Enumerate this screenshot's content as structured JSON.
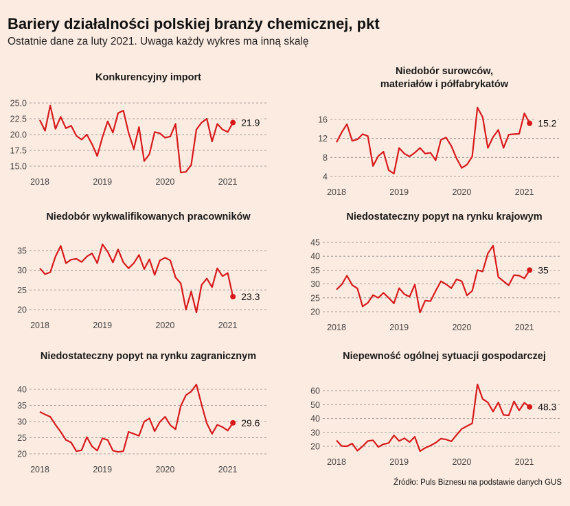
{
  "header": {
    "title": "Bariery działalności polskiej branży chemicznej, pkt",
    "subtitle": "Ostatnie dane za luty 2021. Uwaga każdy wykres ma inną skalę"
  },
  "source": "Źródło: Puls Biznesu na podstawie danych GUS",
  "colors": {
    "line": "#d7191c",
    "background": "#fbebe0",
    "grid": "#888888"
  },
  "chart_data": [
    {
      "type": "line",
      "title": "Konkurencyjny import",
      "x_start": "2018-01",
      "x_ticks": [
        "2018",
        "2019",
        "2020",
        "2021"
      ],
      "y_ticks": [
        "15.0",
        "17.5",
        "20.0",
        "22.5",
        "25.0"
      ],
      "ylim": [
        15,
        25
      ],
      "last_label": "21.9",
      "values": [
        22.3,
        20.6,
        24.6,
        20.9,
        22.8,
        21.0,
        21.4,
        19.8,
        19.2,
        20.0,
        18.5,
        16.6,
        19.6,
        22.1,
        20.3,
        23.4,
        23.8,
        20.3,
        17.7,
        21.2,
        15.8,
        16.9,
        20.4,
        20.2,
        19.5,
        19.7,
        21.7,
        14.0,
        14.1,
        15.2,
        20.8,
        21.9,
        22.5,
        18.9,
        21.7,
        20.8,
        20.4,
        21.9
      ]
    },
    {
      "type": "line",
      "title": "Niedobór surowców, materiałów i półfabrykatów",
      "x_start": "2018-01",
      "x_ticks": [
        "2018",
        "2019",
        "2020",
        "2021"
      ],
      "y_ticks": [
        "4",
        "8",
        "12",
        "16"
      ],
      "ylim": [
        4,
        16
      ],
      "last_label": "15.2",
      "values": [
        11.2,
        13.3,
        15.0,
        11.5,
        11.8,
        12.9,
        12.5,
        6.2,
        8.3,
        9.2,
        5.3,
        4.6,
        10.0,
        8.8,
        8.2,
        9.0,
        10.0,
        8.8,
        9.0,
        7.4,
        11.7,
        12.2,
        10.4,
        7.8,
        5.8,
        6.5,
        8.2,
        18.5,
        16.5,
        10.0,
        12.3,
        13.8,
        10.0,
        12.8,
        12.9,
        13.0,
        17.3,
        15.2
      ]
    },
    {
      "type": "line",
      "title": "Niedobór wykwalifikowanych pracowników",
      "x_start": "2018-01",
      "x_ticks": [
        "2018",
        "2019",
        "2020",
        "2021"
      ],
      "y_ticks": [
        "20",
        "25",
        "30",
        "35"
      ],
      "ylim": [
        20,
        35
      ],
      "last_label": "23.3",
      "values": [
        30.5,
        29.0,
        29.5,
        33.5,
        36.2,
        31.8,
        32.7,
        32.9,
        32.1,
        33.5,
        34.3,
        31.8,
        36.6,
        34.7,
        32.0,
        35.3,
        32.0,
        30.5,
        31.8,
        33.9,
        30.3,
        32.8,
        28.8,
        32.5,
        33.2,
        32.5,
        28.2,
        26.7,
        20.0,
        24.6,
        19.3,
        26.3,
        27.9,
        25.7,
        30.5,
        28.5,
        29.3,
        23.3
      ]
    },
    {
      "type": "line",
      "title": "Niedostateczny popyt na rynku krajowym",
      "x_start": "2018-01",
      "x_ticks": [
        "2018",
        "2019",
        "2020",
        "2021"
      ],
      "y_ticks": [
        "20",
        "25",
        "30",
        "35",
        "40",
        "45"
      ],
      "ylim": [
        20,
        45
      ],
      "last_label": "35",
      "values": [
        28.0,
        29.8,
        33.0,
        29.6,
        28.4,
        21.9,
        23.2,
        26.0,
        25.0,
        26.8,
        25.0,
        23.0,
        28.5,
        26.3,
        25.4,
        29.8,
        19.7,
        24.0,
        23.8,
        27.5,
        31.0,
        29.9,
        28.5,
        31.7,
        31.0,
        25.9,
        27.5,
        35.0,
        34.5,
        41.0,
        43.8,
        32.5,
        31.0,
        29.5,
        33.2,
        33.0,
        32.0,
        35.0
      ]
    },
    {
      "type": "line",
      "title": "Niedostateczny popyt na rynku zagranicznym",
      "x_start": "2018-01",
      "x_ticks": [
        "2018",
        "2019",
        "2020",
        "2021"
      ],
      "y_ticks": [
        "20",
        "25",
        "30",
        "35",
        "40"
      ],
      "ylim": [
        20,
        40
      ],
      "last_label": "29.6",
      "values": [
        33.0,
        32.2,
        31.5,
        29.0,
        26.8,
        24.3,
        23.5,
        20.8,
        21.1,
        25.2,
        22.3,
        21.0,
        24.8,
        24.3,
        21.0,
        20.6,
        20.8,
        26.8,
        26.2,
        25.6,
        30.0,
        31.0,
        27.0,
        29.9,
        31.5,
        28.9,
        27.6,
        34.8,
        38.2,
        39.3,
        41.5,
        35.2,
        29.4,
        26.2,
        29.0,
        28.3,
        27.2,
        29.6
      ]
    },
    {
      "type": "line",
      "title": "Niepewność ogólnej sytuacji gospodarczej",
      "x_start": "2018-01",
      "x_ticks": [
        "2018",
        "2019",
        "2020",
        "2021"
      ],
      "y_ticks": [
        "20",
        "30",
        "40",
        "50",
        "60"
      ],
      "ylim": [
        20,
        60
      ],
      "last_label": "48.3",
      "values": [
        24.2,
        20.2,
        20.0,
        22.0,
        16.8,
        20.0,
        23.8,
        24.3,
        19.5,
        21.5,
        22.3,
        27.8,
        23.8,
        25.8,
        23.0,
        26.8,
        16.5,
        18.8,
        20.5,
        22.5,
        25.5,
        24.9,
        23.5,
        28.2,
        32.5,
        34.5,
        36.5,
        64.5,
        54.0,
        51.5,
        45.0,
        51.5,
        42.5,
        42.2,
        52.3,
        45.8,
        51.3,
        48.3
      ]
    }
  ]
}
